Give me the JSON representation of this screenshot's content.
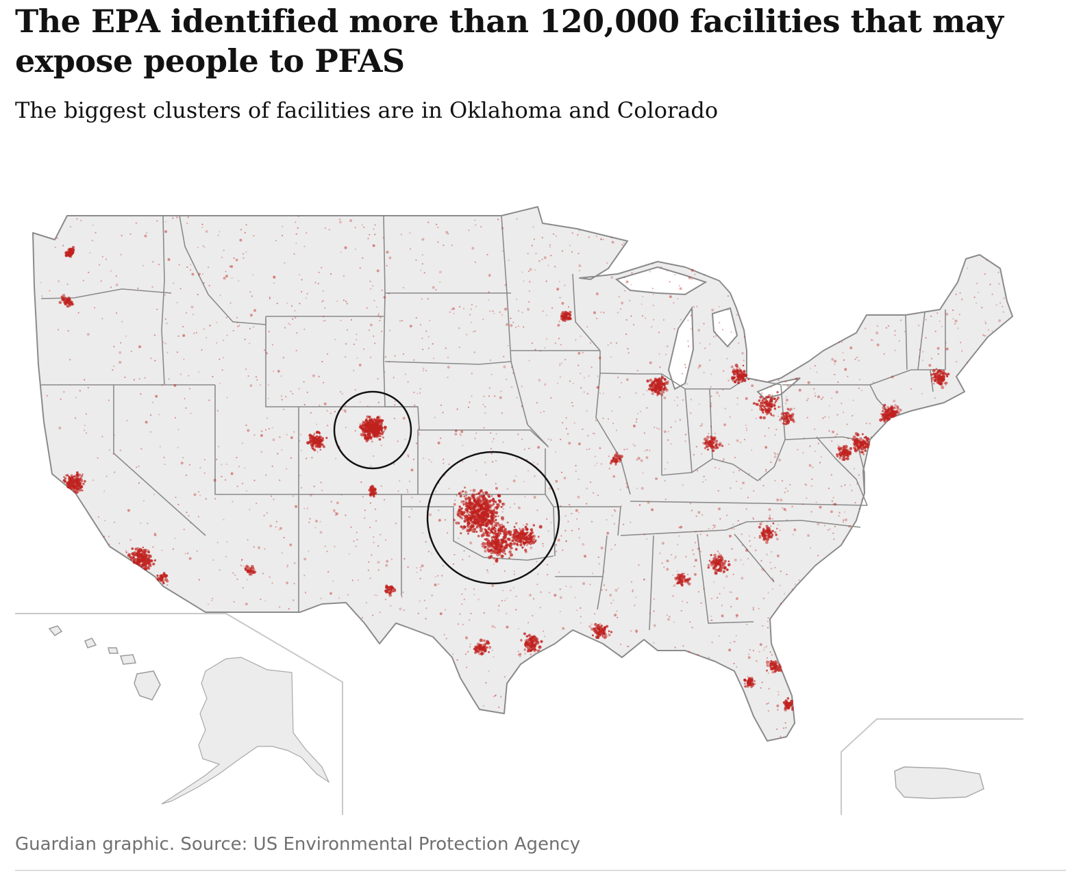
{
  "header": {
    "title": "The EPA identified more than 120,000 facilities that may expose people to PFAS",
    "subtitle": "The biggest clusters of facilities are in Oklahoma and Colorado"
  },
  "footer": {
    "source": "Guardian graphic. Source: US Environmental Protection Agency"
  },
  "map": {
    "region": "United States",
    "insets": [
      "Hawaii",
      "Alaska",
      "Puerto Rico"
    ],
    "highlighted_clusters": [
      "Colorado",
      "Oklahoma"
    ],
    "colors": {
      "land": "#ececec",
      "borders": "#8a8a8a",
      "facility_dot": "#c0221f",
      "highlight_ring": "#121212",
      "inset_frame": "#c8c8c8"
    }
  }
}
